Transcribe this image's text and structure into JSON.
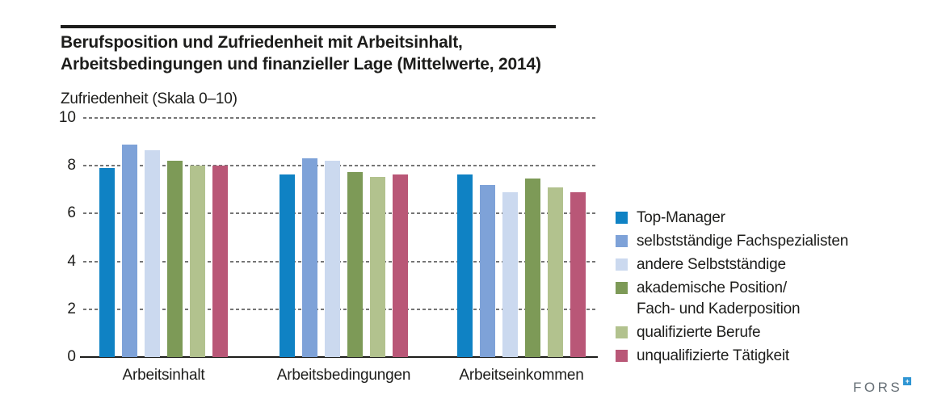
{
  "header": {
    "title": "Berufsposition und Zufriedenheit mit Arbeitsinhalt,\nArbeitsbedingungen und finanzieller Lage (Mittelwerte, 2014)"
  },
  "chart_data": {
    "type": "bar",
    "title": "Berufsposition und Zufriedenheit mit Arbeitsinhalt, Arbeitsbedingungen und finanzieller Lage (Mittelwerte, 2014)",
    "ylabel": "Zufriedenheit (Skala 0–10)",
    "xlabel": "",
    "ylim": [
      0,
      10
    ],
    "yticks": [
      0,
      2,
      4,
      6,
      8,
      10
    ],
    "grid": "horizontal-dashed",
    "legend_position": "right",
    "categories": [
      "Arbeitsinhalt",
      "Arbeitsbedingungen",
      "Arbeitseinkommen"
    ],
    "series": [
      {
        "name": "Top-Manager",
        "label": "Top-Manager",
        "color": "#0f82c4",
        "values": [
          7.9,
          7.65,
          7.65
        ]
      },
      {
        "name": "selbstständige Fachspezialisten",
        "label": "selbstständige Fachspezialisten",
        "color": "#7ea2d8",
        "values": [
          8.9,
          8.3,
          7.2
        ]
      },
      {
        "name": "andere Selbstständige",
        "label": "andere Selbstständige",
        "color": "#cbd9ef",
        "values": [
          8.65,
          8.2,
          6.9
        ]
      },
      {
        "name": "akademische Position/ Fach- und Kaderposition",
        "label": "akademische Position/\nFach- und Kaderposition",
        "color": "#7d9a57",
        "values": [
          8.2,
          7.75,
          7.45
        ]
      },
      {
        "name": "qualifizierte Berufe",
        "label": "qualifizierte Berufe",
        "color": "#b2c28e",
        "values": [
          8.0,
          7.55,
          7.1
        ]
      },
      {
        "name": "unqualifizierte Tätigkeit",
        "label": "unqualifizierte Tätigkeit",
        "color": "#b95777",
        "values": [
          8.0,
          7.65,
          6.9
        ]
      }
    ],
    "colors": {
      "grid": "#757575",
      "axis": "#1d1d1b",
      "text": "#1d1d1b"
    }
  },
  "footer": {
    "logo_text": "FORS",
    "logo_mark": "+"
  }
}
